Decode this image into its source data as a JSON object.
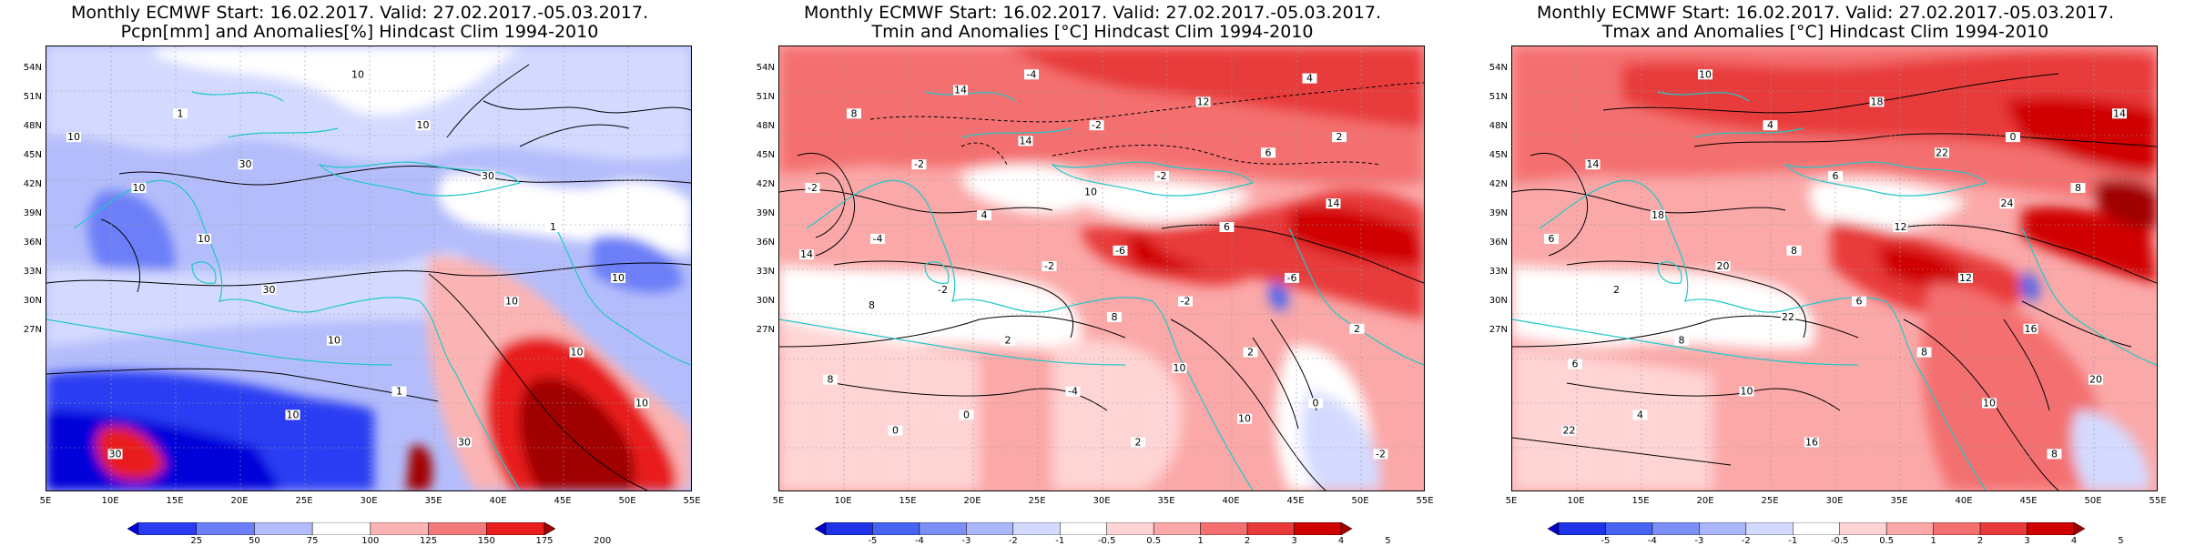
{
  "panels": [
    {
      "title1": "Monthly ECMWF Start: 16.02.2017. Valid: 27.02.2017.-05.03.2017.",
      "title2": "Pcpn[mm] and Anomalies[%] Hindcast Clim 1994-2010",
      "colorbar_labels": [
        "25",
        "50",
        "75",
        "100",
        "125",
        "150",
        "175",
        "200"
      ],
      "colorbar_colors": [
        "#0000d8",
        "#2a3cf2",
        "#6c7ff8",
        "#b4bdfb",
        "#ffffff",
        "#fbb4b4",
        "#f27a7a",
        "#e81e1e",
        "#a00000"
      ],
      "contour_labels": [
        "10",
        "10",
        "10",
        "10",
        "10",
        "10",
        "10",
        "10",
        "10",
        "30",
        "30",
        "30",
        "10",
        "1",
        "1",
        "1",
        "10",
        "30",
        "30"
      ]
    },
    {
      "title1": "Monthly ECMWF Start: 16.02.2017. Valid: 27.02.2017.-05.03.2017.",
      "title2": "Tmin and Anomalies [°C] Hindcast Clim 1994-2010",
      "colorbar_labels": [
        "-5",
        "-4",
        "-3",
        "-2",
        "-1",
        "-0.5",
        "0.5",
        "1",
        "2",
        "3",
        "4",
        "5"
      ],
      "colorbar_colors": [
        "#0000c8",
        "#1e32e6",
        "#4664f0",
        "#7c8ff6",
        "#aab5fa",
        "#d4daff",
        "#ffffff",
        "#ffd4d4",
        "#fba8a8",
        "#f47070",
        "#e83a3a",
        "#d00000",
        "#a00000"
      ],
      "contour_labels": [
        "-6",
        "2",
        "0",
        "-2",
        "-2",
        "-4",
        "2",
        "-4",
        "-2",
        "0",
        "-2",
        "-2",
        "-2",
        "2",
        "6",
        "8",
        "-4",
        "-6",
        "-2",
        "2",
        "2",
        "4",
        "12",
        "8",
        "-2",
        "6",
        "0",
        "8",
        "14",
        "14",
        "10",
        "14",
        "14",
        "10",
        "8",
        "10",
        "4"
      ]
    },
    {
      "title1": "Monthly ECMWF Start: 16.02.2017. Valid: 27.02.2017.-05.03.2017.",
      "title2": "Tmax and Anomalies [°C] Hindcast Clim 1994-2010",
      "colorbar_labels": [
        "-5",
        "-4",
        "-3",
        "-2",
        "-1",
        "-0.5",
        "0.5",
        "1",
        "2",
        "3",
        "4",
        "5"
      ],
      "colorbar_colors": [
        "#0000c8",
        "#1e32e6",
        "#4664f0",
        "#7c8ff6",
        "#aab5fa",
        "#d4daff",
        "#ffffff",
        "#ffd4d4",
        "#fba8a8",
        "#f47070",
        "#e83a3a",
        "#d00000",
        "#a00000"
      ],
      "contour_labels": [
        "6",
        "8",
        "0",
        "4",
        "6",
        "8",
        "10",
        "8",
        "6",
        "4",
        "10",
        "2",
        "6",
        "8",
        "8",
        "12",
        "14",
        "10",
        "12",
        "14",
        "16",
        "16",
        "18",
        "18",
        "20",
        "20",
        "22",
        "22",
        "22",
        "24"
      ]
    }
  ],
  "lat_labels": [
    "54N",
    "51N",
    "48N",
    "45N",
    "42N",
    "39N",
    "36N",
    "33N",
    "30N",
    "27N"
  ],
  "lon_labels": [
    "5E",
    "10E",
    "15E",
    "20E",
    "25E",
    "30E",
    "35E",
    "40E",
    "45E",
    "50E",
    "55E"
  ],
  "colors": {
    "coast": "#1fc8c8",
    "contour": "#000000",
    "grid": "#9a9a9a"
  }
}
